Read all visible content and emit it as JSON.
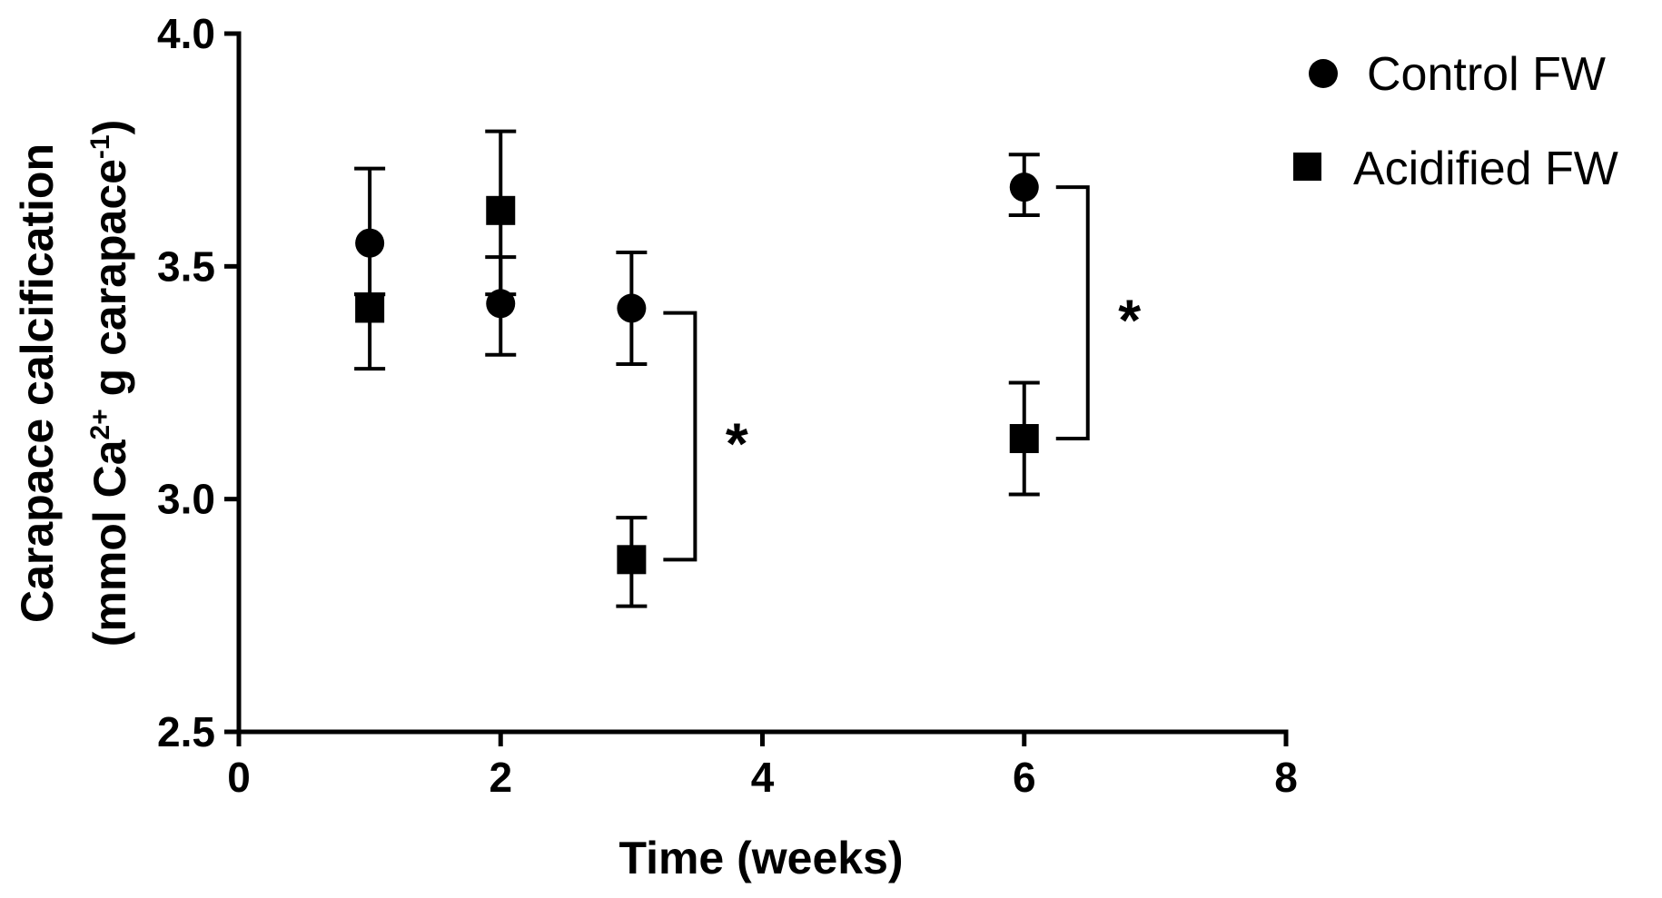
{
  "chart_data": {
    "type": "scatter",
    "x": [
      1,
      2,
      3,
      6
    ],
    "series": [
      {
        "name": "Control FW",
        "marker": "circle",
        "values": [
          3.55,
          3.42,
          3.41,
          3.67
        ],
        "err_upper": [
          3.71,
          3.52,
          3.53,
          3.74
        ],
        "err_lower": [
          3.44,
          3.31,
          3.29,
          3.61
        ]
      },
      {
        "name": "Acidified FW",
        "marker": "square",
        "values": [
          3.41,
          3.62,
          2.87,
          3.13
        ],
        "err_upper": [
          3.44,
          3.79,
          2.96,
          3.25
        ],
        "err_lower": [
          3.28,
          3.44,
          2.77,
          3.01
        ]
      }
    ],
    "xlabel": "Time (weeks)",
    "ylabel_line1": "Carapace calcification",
    "ylabel_line2_pre": "(mmol Ca",
    "ylabel_sup1": "2+",
    "ylabel_line2_mid": " g carapace",
    "ylabel_sup2": "-1",
    "ylabel_line2_post": ")",
    "xlim": [
      0,
      8
    ],
    "ylim": [
      2.5,
      4.0
    ],
    "xticks": [
      "0",
      "2",
      "4",
      "6",
      "8"
    ],
    "yticks": [
      "2.5",
      "3.0",
      "3.5",
      "4.0"
    ],
    "grid": false,
    "legend_position": "top-right",
    "significance": [
      {
        "x": 3,
        "y_top": 3.4,
        "y_bottom": 2.87,
        "label": "*"
      },
      {
        "x": 6,
        "y_top": 3.67,
        "y_bottom": 3.13,
        "label": "*"
      }
    ],
    "colors": {
      "marker": "#000000",
      "axis": "#000000"
    }
  }
}
